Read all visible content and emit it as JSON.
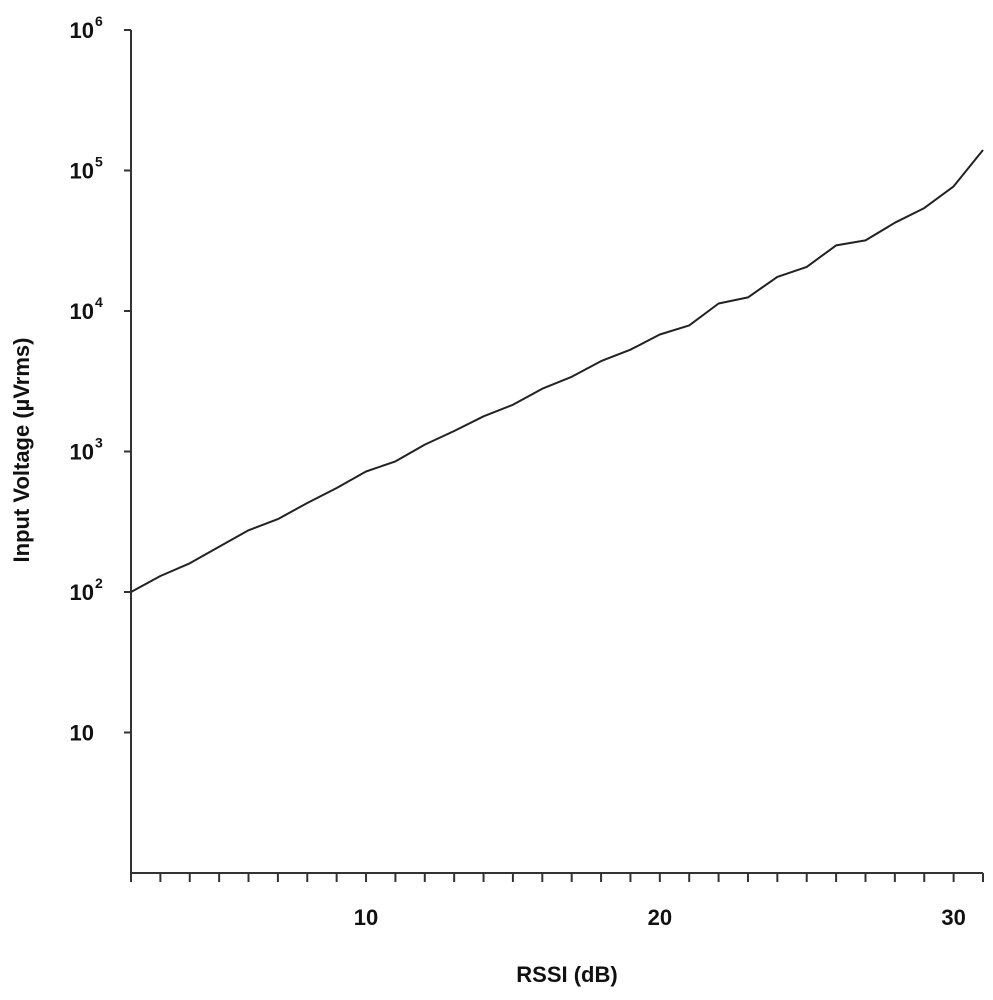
{
  "chart_data": {
    "type": "line",
    "xlabel": "RSSI (dB)",
    "ylabel": "Input Voltage (µVrms)",
    "y_scale": "log",
    "xlim": [
      2,
      31
    ],
    "ylim": [
      1,
      1000000
    ],
    "x_major_ticks": [
      {
        "value": 10,
        "label": "10"
      },
      {
        "value": 20,
        "label": "20"
      },
      {
        "value": 30,
        "label": "30"
      }
    ],
    "y_ticks": [
      {
        "value": 10,
        "base": "10",
        "exp": ""
      },
      {
        "value": 100,
        "base": "10",
        "exp": "2"
      },
      {
        "value": 1000,
        "base": "10",
        "exp": "3"
      },
      {
        "value": 10000,
        "base": "10",
        "exp": "4"
      },
      {
        "value": 100000,
        "base": "10",
        "exp": "5"
      },
      {
        "value": 1000000,
        "base": "10",
        "exp": "6"
      }
    ],
    "grid": false,
    "series": [
      {
        "color": "#222222",
        "x": [
          2,
          3,
          4,
          5,
          6,
          7,
          8,
          9,
          10,
          11,
          12,
          13,
          14,
          15,
          16,
          17,
          18,
          19,
          20,
          21,
          22,
          23,
          24,
          25,
          26,
          27,
          28,
          29,
          30,
          31
        ],
        "y": [
          100,
          130,
          160,
          210,
          275,
          330,
          430,
          550,
          720,
          850,
          1120,
          1400,
          1780,
          2150,
          2800,
          3400,
          4400,
          5300,
          6800,
          7900,
          11300,
          12500,
          17500,
          20600,
          29300,
          31800,
          42500,
          54000,
          77000,
          140000
        ]
      }
    ]
  }
}
